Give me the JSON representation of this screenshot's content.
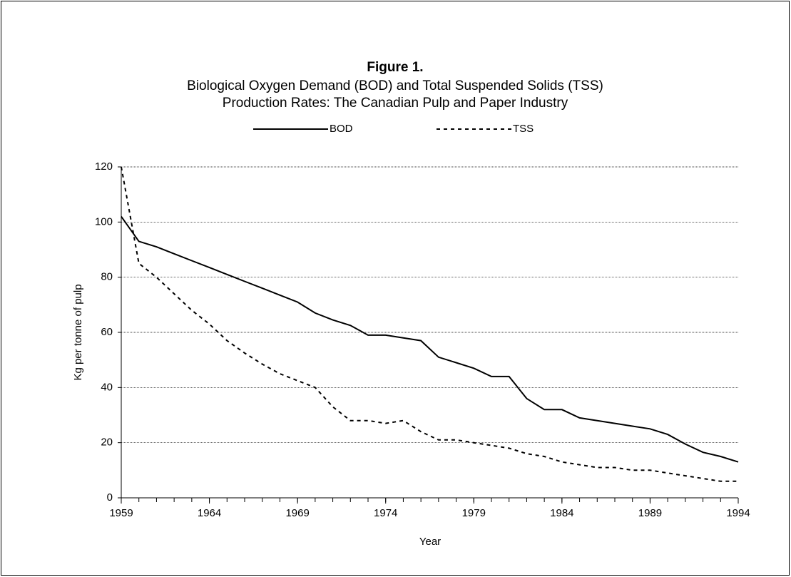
{
  "chart_data": {
    "type": "line",
    "title": "Figure 1.",
    "subtitle": [
      "Biological Oxygen Demand (BOD) and Total Suspended Solids (TSS)",
      "Production Rates: The Canadian Pulp and Paper Industry"
    ],
    "x_label": "Year",
    "y_label": "Kg per tonne of pulp",
    "x": [
      1959,
      1960,
      1961,
      1962,
      1963,
      1964,
      1965,
      1966,
      1967,
      1968,
      1969,
      1970,
      1971,
      1972,
      1973,
      1974,
      1975,
      1976,
      1977,
      1978,
      1979,
      1980,
      1981,
      1982,
      1983,
      1984,
      1985,
      1986,
      1987,
      1988,
      1989,
      1990,
      1991,
      1992,
      1993,
      1994
    ],
    "series": [
      {
        "name": "BOD",
        "color": "#000000",
        "dash": "solid",
        "values": [
          102,
          93,
          91,
          88.5,
          86,
          83.5,
          81,
          78.5,
          76,
          73.5,
          71,
          67,
          64.5,
          62.5,
          59,
          59,
          58,
          57,
          51,
          49,
          47,
          44,
          44,
          36,
          32,
          32,
          29,
          28,
          27,
          26,
          25,
          23,
          19.5,
          16.5,
          15,
          13
        ]
      },
      {
        "name": "TSS",
        "color": "#000000",
        "dash": "dashed",
        "values": [
          120,
          85,
          80,
          74,
          68,
          63,
          57,
          52.5,
          48.5,
          45,
          42.5,
          40,
          33,
          28,
          28,
          27,
          28,
          24,
          21,
          21,
          20,
          19,
          18,
          16,
          15,
          13,
          12,
          11,
          11,
          10,
          10,
          9,
          8,
          7,
          6,
          6
        ]
      }
    ],
    "xlim": [
      1959,
      1994
    ],
    "xticks": [
      1959,
      1964,
      1969,
      1974,
      1979,
      1984,
      1989,
      1994
    ],
    "xminorticks": [
      1959,
      1960,
      1961,
      1962,
      1963,
      1964,
      1965,
      1966,
      1967,
      1968,
      1969,
      1970,
      1971,
      1972,
      1973,
      1974,
      1975,
      1976,
      1977,
      1978,
      1979,
      1980,
      1981,
      1982,
      1983,
      1984,
      1985,
      1986,
      1987,
      1988,
      1989,
      1990,
      1991,
      1992,
      1993,
      1994
    ],
    "ylim": [
      0,
      120
    ],
    "yticks": [
      0,
      20,
      40,
      60,
      80,
      100,
      120
    ],
    "grid": true,
    "legend": "top"
  }
}
